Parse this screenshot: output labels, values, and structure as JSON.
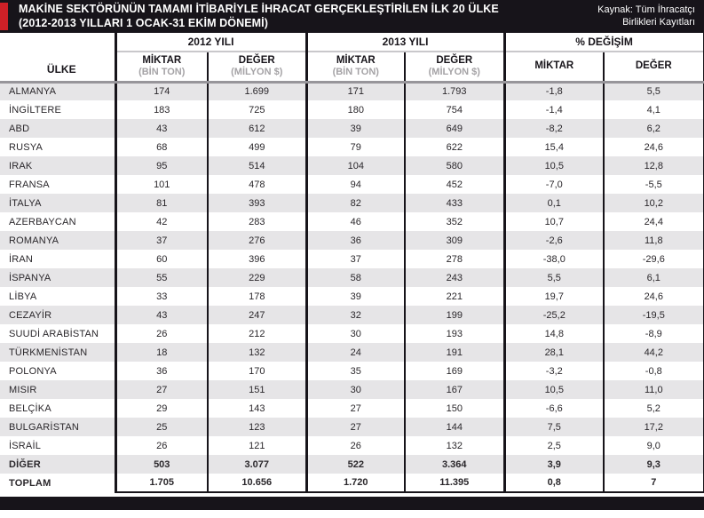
{
  "header": {
    "title_line1": "MAKİNE SEKTÖRÜNÜN TAMAMI İTİBARİYLE İHRACAT GERÇEKLEŞTİRİLEN İLK 20 ÜLKE",
    "title_line2": "(2012-2013 YILLARI 1 OCAK-31 EKİM DÖNEMİ)",
    "source_line1": "Kaynak: Tüm İhracatçı",
    "source_line2": "Birlikleri Kayıtları",
    "accent_color": "#ce2027",
    "bar_color": "#17141a"
  },
  "table": {
    "country_header": "ÜLKE",
    "groups": [
      {
        "label": "2012 YILI"
      },
      {
        "label": "2013 YILI"
      },
      {
        "label": "% DEĞİŞİM"
      }
    ],
    "subheaders": {
      "miktar": "MİKTAR",
      "miktar_unit": "(BİN TON)",
      "deger": "DEĞER",
      "deger_unit": "(MİLYON $)"
    },
    "rows": [
      {
        "country": "ALMANYA",
        "m2012": "174",
        "d2012": "1.699",
        "m2013": "171",
        "d2013": "1.793",
        "pm": "-1,8",
        "pd": "5,5",
        "bold": false
      },
      {
        "country": "İNGİLTERE",
        "m2012": "183",
        "d2012": "725",
        "m2013": "180",
        "d2013": "754",
        "pm": "-1,4",
        "pd": "4,1",
        "bold": false
      },
      {
        "country": "ABD",
        "m2012": "43",
        "d2012": "612",
        "m2013": "39",
        "d2013": "649",
        "pm": "-8,2",
        "pd": "6,2",
        "bold": false
      },
      {
        "country": "RUSYA",
        "m2012": "68",
        "d2012": "499",
        "m2013": "79",
        "d2013": "622",
        "pm": "15,4",
        "pd": "24,6",
        "bold": false
      },
      {
        "country": "IRAK",
        "m2012": "95",
        "d2012": "514",
        "m2013": "104",
        "d2013": "580",
        "pm": "10,5",
        "pd": "12,8",
        "bold": false
      },
      {
        "country": "FRANSA",
        "m2012": "101",
        "d2012": "478",
        "m2013": "94",
        "d2013": "452",
        "pm": "-7,0",
        "pd": "-5,5",
        "bold": false
      },
      {
        "country": "İTALYA",
        "m2012": "81",
        "d2012": "393",
        "m2013": "82",
        "d2013": "433",
        "pm": "0,1",
        "pd": "10,2",
        "bold": false
      },
      {
        "country": "AZERBAYCAN",
        "m2012": "42",
        "d2012": "283",
        "m2013": "46",
        "d2013": "352",
        "pm": "10,7",
        "pd": "24,4",
        "bold": false
      },
      {
        "country": "ROMANYA",
        "m2012": "37",
        "d2012": "276",
        "m2013": "36",
        "d2013": "309",
        "pm": "-2,6",
        "pd": "11,8",
        "bold": false
      },
      {
        "country": "İRAN",
        "m2012": "60",
        "d2012": "396",
        "m2013": "37",
        "d2013": "278",
        "pm": "-38,0",
        "pd": "-29,6",
        "bold": false
      },
      {
        "country": "İSPANYA",
        "m2012": "55",
        "d2012": "229",
        "m2013": "58",
        "d2013": "243",
        "pm": "5,5",
        "pd": "6,1",
        "bold": false
      },
      {
        "country": "LİBYA",
        "m2012": "33",
        "d2012": "178",
        "m2013": "39",
        "d2013": "221",
        "pm": "19,7",
        "pd": "24,6",
        "bold": false
      },
      {
        "country": "CEZAYİR",
        "m2012": "43",
        "d2012": "247",
        "m2013": "32",
        "d2013": "199",
        "pm": "-25,2",
        "pd": "-19,5",
        "bold": false
      },
      {
        "country": "SUUDİ ARABİSTAN",
        "m2012": "26",
        "d2012": "212",
        "m2013": "30",
        "d2013": "193",
        "pm": "14,8",
        "pd": "-8,9",
        "bold": false
      },
      {
        "country": "TÜRKMENİSTAN",
        "m2012": "18",
        "d2012": "132",
        "m2013": "24",
        "d2013": "191",
        "pm": "28,1",
        "pd": "44,2",
        "bold": false
      },
      {
        "country": "POLONYA",
        "m2012": "36",
        "d2012": "170",
        "m2013": "35",
        "d2013": "169",
        "pm": "-3,2",
        "pd": "-0,8",
        "bold": false
      },
      {
        "country": "MISIR",
        "m2012": "27",
        "d2012": "151",
        "m2013": "30",
        "d2013": "167",
        "pm": "10,5",
        "pd": "11,0",
        "bold": false
      },
      {
        "country": "BELÇİKA",
        "m2012": "29",
        "d2012": "143",
        "m2013": "27",
        "d2013": "150",
        "pm": "-6,6",
        "pd": "5,2",
        "bold": false
      },
      {
        "country": "BULGARİSTAN",
        "m2012": "25",
        "d2012": "123",
        "m2013": "27",
        "d2013": "144",
        "pm": "7,5",
        "pd": "17,2",
        "bold": false
      },
      {
        "country": "İSRAİL",
        "m2012": "26",
        "d2012": "121",
        "m2013": "26",
        "d2013": "132",
        "pm": "2,5",
        "pd": "9,0",
        "bold": false
      },
      {
        "country": "DİĞER",
        "m2012": "503",
        "d2012": "3.077",
        "m2013": "522",
        "d2013": "3.364",
        "pm": "3,9",
        "pd": "9,3",
        "bold": true
      },
      {
        "country": "TOPLAM",
        "m2012": "1.705",
        "d2012": "10.656",
        "m2013": "1.720",
        "d2013": "11.395",
        "pm": "0,8",
        "pd": "7",
        "bold": true
      }
    ]
  }
}
